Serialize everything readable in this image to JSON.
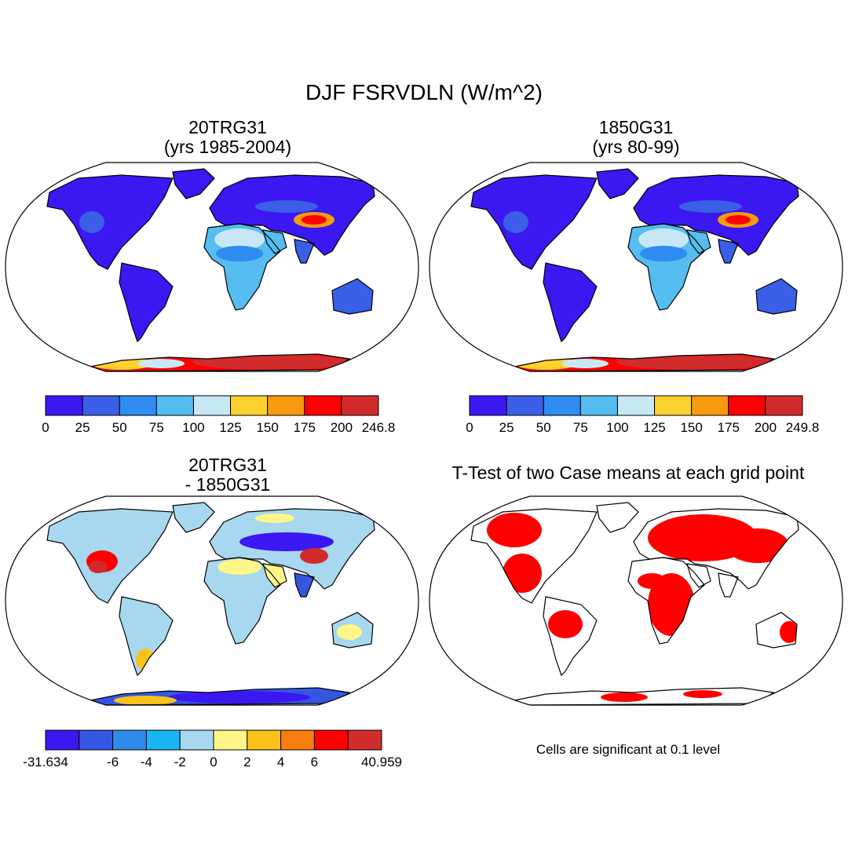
{
  "title": "DJF FSRVDLN (W/m^2)",
  "panels": [
    {
      "id": "tl",
      "title_lines": [
        "20TRG31",
        "(yrs 1985-2004)"
      ],
      "map": "mean",
      "colorbar": {
        "colors": [
          "#3b17f2",
          "#3b5ee6",
          "#2e8cf2",
          "#55bdf0",
          "#c8e8f5",
          "#fcd12e",
          "#f79a0f",
          "#ff0000",
          "#d12b2b"
        ],
        "labels": [
          "0",
          "25",
          "50",
          "75",
          "100",
          "125",
          "150",
          "175",
          "200",
          "246.8"
        ]
      }
    },
    {
      "id": "tr",
      "title_lines": [
        "1850G31",
        "(yrs 80-99)"
      ],
      "map": "mean",
      "colorbar": {
        "colors": [
          "#3b17f2",
          "#3b5ee6",
          "#2e8cf2",
          "#55bdf0",
          "#c8e8f5",
          "#fcd12e",
          "#f79a0f",
          "#ff0000",
          "#d12b2b"
        ],
        "labels": [
          "0",
          "25",
          "50",
          "75",
          "100",
          "125",
          "150",
          "175",
          "200",
          "249.8"
        ]
      }
    },
    {
      "id": "bl",
      "title_lines": [
        "20TRG31",
        "- 1850G31"
      ],
      "map": "diff",
      "colorbar": {
        "colors": [
          "#3b17f2",
          "#3456e0",
          "#2e8ce8",
          "#18b6f2",
          "#a7d8f0",
          "#fff68a",
          "#fcc21a",
          "#f77e0f",
          "#ff0000",
          "#d12b2b"
        ],
        "labels": [
          "-31.634",
          "",
          "-6",
          "-4",
          "-2",
          "0",
          "2",
          "4",
          "6",
          "",
          "40.959"
        ]
      }
    },
    {
      "id": "br",
      "title_lines": [
        "T-Test of two Case means at each grid point"
      ],
      "map": "ttest",
      "note": "Cells are significant at 0.1 level"
    }
  ]
}
